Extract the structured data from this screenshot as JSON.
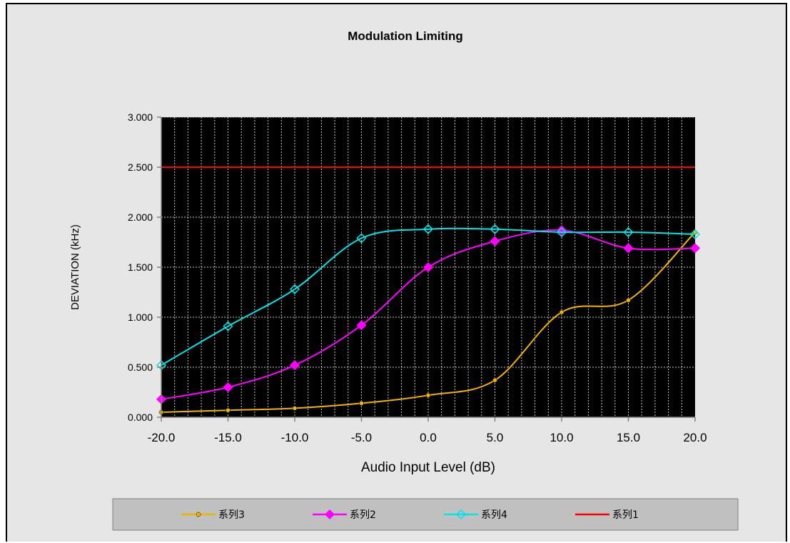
{
  "chart_data": {
    "type": "line",
    "title": "Modulation Limiting",
    "xlabel": "Audio Input Level (dB)",
    "ylabel": "DEVIATION (kHz)",
    "x": [
      -20,
      -15,
      -10,
      -5,
      0,
      5,
      10,
      15,
      20
    ],
    "x_tick_labels": [
      "-20.0",
      "-15.0",
      "-10.0",
      "-5.0",
      "0.0",
      "5.0",
      "10.0",
      "15.0",
      "20.0"
    ],
    "xlim": [
      -20,
      20
    ],
    "ylim": [
      0,
      3
    ],
    "y_ticks": [
      0,
      0.5,
      1,
      1.5,
      2,
      2.5,
      3
    ],
    "y_tick_labels": [
      "0.000",
      "0.500",
      "1.000",
      "1.500",
      "2.000",
      "2.500",
      "3.000"
    ],
    "grid": true,
    "background": "#000000",
    "legend_placement": "bottom",
    "series": [
      {
        "name": "系列3",
        "color": "#f0b400",
        "marker": "circle",
        "smooth": true,
        "values": [
          0.05,
          0.07,
          0.09,
          0.14,
          0.22,
          0.37,
          1.05,
          1.17,
          1.85
        ]
      },
      {
        "name": "系列2",
        "color": "#ff00ff",
        "marker": "diamond",
        "smooth": true,
        "values": [
          0.18,
          0.3,
          0.52,
          0.92,
          1.5,
          1.76,
          1.87,
          1.69,
          1.69
        ]
      },
      {
        "name": "系列4",
        "color": "#00e5e5",
        "marker": "diamond-open",
        "smooth": true,
        "values": [
          0.52,
          0.91,
          1.28,
          1.79,
          1.88,
          1.88,
          1.85,
          1.85,
          1.83
        ]
      },
      {
        "name": "系列1",
        "color": "#ff0000",
        "marker": "none",
        "smooth": false,
        "values": [
          2.5,
          2.5,
          2.5,
          2.5,
          2.5,
          2.5,
          2.5,
          2.5,
          2.5
        ]
      }
    ]
  }
}
